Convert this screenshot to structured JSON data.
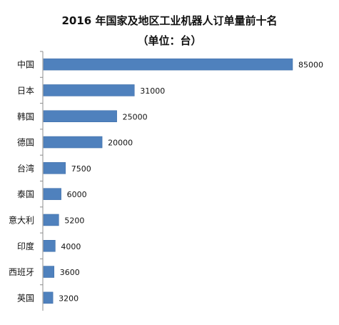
{
  "chart_data": {
    "type": "bar",
    "orientation": "horizontal",
    "title": "2016 年国家及地区工业机器人订单量前十名",
    "subtitle": "（单位：台）",
    "categories": [
      "中国",
      "日本",
      "韩国",
      "德国",
      "台湾",
      "泰国",
      "意大利",
      "印度",
      "西班牙",
      "英国"
    ],
    "values": [
      85000,
      31000,
      25000,
      20000,
      7500,
      6000,
      5200,
      4000,
      3600,
      3200
    ],
    "value_labels": [
      "85000",
      "31000",
      "25000",
      "20000",
      "7500",
      "6000",
      "5200",
      "4000",
      "3600",
      "3200"
    ],
    "xlim": [
      0,
      85000
    ],
    "grid": false,
    "legend": "none",
    "colors": {
      "bar": "#4f81bd",
      "bar_edge": "#3a6aa6",
      "axis": "#8c8c8c",
      "text": "#111111"
    }
  }
}
